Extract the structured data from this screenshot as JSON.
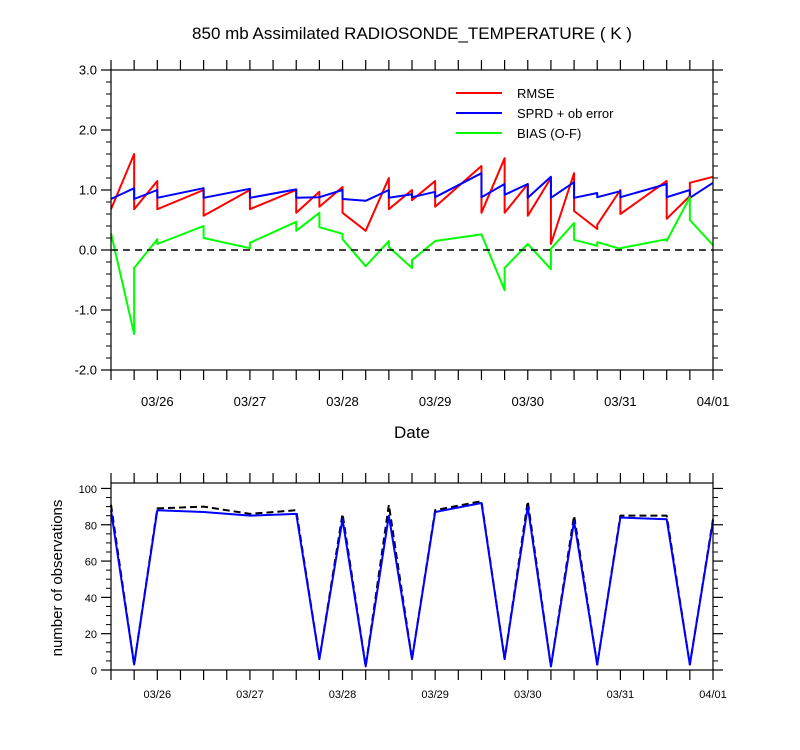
{
  "chart_data": [
    {
      "type": "line",
      "title": "850 mb Assimilated RADIOSONDE_TEMPERATURE ( K )",
      "xlabel": "Date",
      "ylabel": "",
      "xlim": [
        0,
        6.5
      ],
      "ylim": [
        -2,
        3
      ],
      "yticks": [
        -2,
        -1,
        0,
        1,
        2,
        3
      ],
      "ytick_labels": [
        "-2.0",
        "-1.0",
        "0.0",
        "1.0",
        "2.0",
        "3.0"
      ],
      "xticks": [
        0.5,
        1.5,
        2.5,
        3.5,
        4.5,
        5.5,
        6.5
      ],
      "xtick_labels": [
        "03/26",
        "03/27",
        "03/28",
        "03/29",
        "03/30",
        "03/31",
        "04/01"
      ],
      "zero_line": true,
      "legend_position": "top-right",
      "series": [
        {
          "name": "RMSE",
          "color": "#ff0000",
          "x": [
            0,
            0.25,
            0.25,
            0.5,
            0.5,
            1.0,
            1.0,
            1.5,
            1.5,
            2.0,
            2.0,
            2.25,
            2.25,
            2.5,
            2.5,
            2.75,
            2.75,
            3.0,
            3.0,
            3.25,
            3.25,
            3.5,
            3.5,
            4.0,
            4.0,
            4.25,
            4.25,
            4.5,
            4.5,
            4.75,
            4.75,
            5.0,
            5.0,
            5.25,
            5.25,
            5.5,
            5.5,
            6.0,
            6.0,
            6.25,
            6.25,
            6.5
          ],
          "y": [
            0.68,
            1.6,
            0.68,
            1.15,
            0.68,
            1.0,
            0.57,
            1.0,
            0.68,
            1.0,
            0.62,
            0.97,
            0.72,
            1.05,
            0.62,
            0.32,
            0.32,
            1.2,
            0.68,
            1.0,
            0.83,
            1.15,
            0.72,
            1.4,
            0.62,
            1.53,
            0.62,
            1.1,
            0.57,
            1.2,
            0.1,
            1.28,
            0.65,
            0.35,
            0.42,
            1.0,
            0.6,
            1.15,
            0.52,
            0.9,
            1.12,
            1.22
          ]
        },
        {
          "name": "SPRD + ob error",
          "color": "#0000ff",
          "x": [
            0,
            0.25,
            0.25,
            0.5,
            0.5,
            1.0,
            1.0,
            1.5,
            1.5,
            2.0,
            2.0,
            2.25,
            2.25,
            2.5,
            2.5,
            2.75,
            2.75,
            3.0,
            3.0,
            3.25,
            3.25,
            3.5,
            3.5,
            4.0,
            4.0,
            4.25,
            4.25,
            4.5,
            4.5,
            4.75,
            4.75,
            5.0,
            5.0,
            5.25,
            5.25,
            5.5,
            5.5,
            6.0,
            6.0,
            6.25,
            6.25,
            6.5
          ],
          "y": [
            0.85,
            1.03,
            0.85,
            1.0,
            0.87,
            1.03,
            0.87,
            1.02,
            0.87,
            1.01,
            0.87,
            0.88,
            0.88,
            1.0,
            0.85,
            0.82,
            0.82,
            1.0,
            0.87,
            0.93,
            0.88,
            0.97,
            0.88,
            1.28,
            0.88,
            1.1,
            0.92,
            1.1,
            0.87,
            1.22,
            0.87,
            1.13,
            0.87,
            0.95,
            0.88,
            0.98,
            0.88,
            1.1,
            0.88,
            1.0,
            0.87,
            1.12
          ]
        },
        {
          "name": "BIAS (O-F)",
          "color": "#00ff00",
          "x": [
            0,
            0.25,
            0.25,
            0.5,
            0.5,
            1.0,
            1.0,
            1.5,
            1.5,
            2.0,
            2.0,
            2.25,
            2.25,
            2.5,
            2.5,
            2.75,
            2.75,
            3.0,
            3.0,
            3.25,
            3.25,
            3.5,
            3.5,
            4.0,
            4.0,
            4.25,
            4.25,
            4.5,
            4.5,
            4.75,
            4.75,
            5.0,
            5.0,
            5.25,
            5.25,
            5.5,
            5.5,
            6.0,
            6.0,
            6.25,
            6.25,
            6.5
          ],
          "y": [
            0.28,
            -1.4,
            -0.3,
            0.18,
            0.1,
            0.4,
            0.2,
            0.03,
            0.12,
            0.47,
            0.32,
            0.62,
            0.38,
            0.27,
            0.18,
            -0.27,
            -0.27,
            0.15,
            0.05,
            -0.3,
            -0.17,
            0.15,
            0.15,
            0.26,
            0.26,
            -0.67,
            -0.3,
            0.1,
            0.1,
            -0.32,
            0.02,
            0.45,
            0.17,
            0.07,
            0.13,
            0.02,
            0.03,
            0.18,
            0.15,
            0.88,
            0.5,
            0.08
          ]
        }
      ]
    },
    {
      "type": "line",
      "title": "",
      "xlabel": "",
      "ylabel": "number of observations",
      "xlim": [
        0,
        6.5
      ],
      "ylim": [
        0,
        103
      ],
      "yticks": [
        0,
        20,
        40,
        60,
        80,
        100
      ],
      "ytick_labels": [
        "0",
        "20",
        "40",
        "60",
        "80",
        "100"
      ],
      "xticks": [
        0.5,
        1.5,
        2.5,
        3.5,
        4.5,
        5.5,
        6.5
      ],
      "xtick_labels": [
        "03/26",
        "03/27",
        "03/28",
        "03/29",
        "03/30",
        "03/31",
        "04/01"
      ],
      "series": [
        {
          "color": "#000000",
          "dash": true,
          "x": [
            0,
            0.25,
            0.5,
            1.0,
            1.5,
            2.0,
            2.25,
            2.5,
            2.75,
            3.0,
            3.25,
            3.5,
            4.0,
            4.25,
            4.5,
            4.75,
            5.0,
            5.25,
            5.5,
            6.0,
            6.25,
            6.5
          ],
          "y": [
            91,
            3,
            89,
            90,
            86,
            88,
            6,
            86,
            2,
            91,
            6,
            88,
            93,
            6,
            93,
            2,
            85,
            3,
            85,
            85,
            3,
            83
          ]
        },
        {
          "color": "#0000ff",
          "dash": false,
          "x": [
            0,
            0.25,
            0.5,
            1.0,
            1.5,
            2.0,
            2.25,
            2.5,
            2.75,
            3.0,
            3.25,
            3.5,
            4.0,
            4.25,
            4.5,
            4.75,
            5.0,
            5.25,
            5.5,
            6.0,
            6.25,
            6.5
          ],
          "y": [
            88,
            3,
            88,
            87,
            85,
            86,
            6,
            83,
            2,
            85,
            6,
            87,
            92,
            6,
            90,
            2,
            82,
            3,
            84,
            83,
            3,
            82
          ]
        }
      ]
    }
  ]
}
